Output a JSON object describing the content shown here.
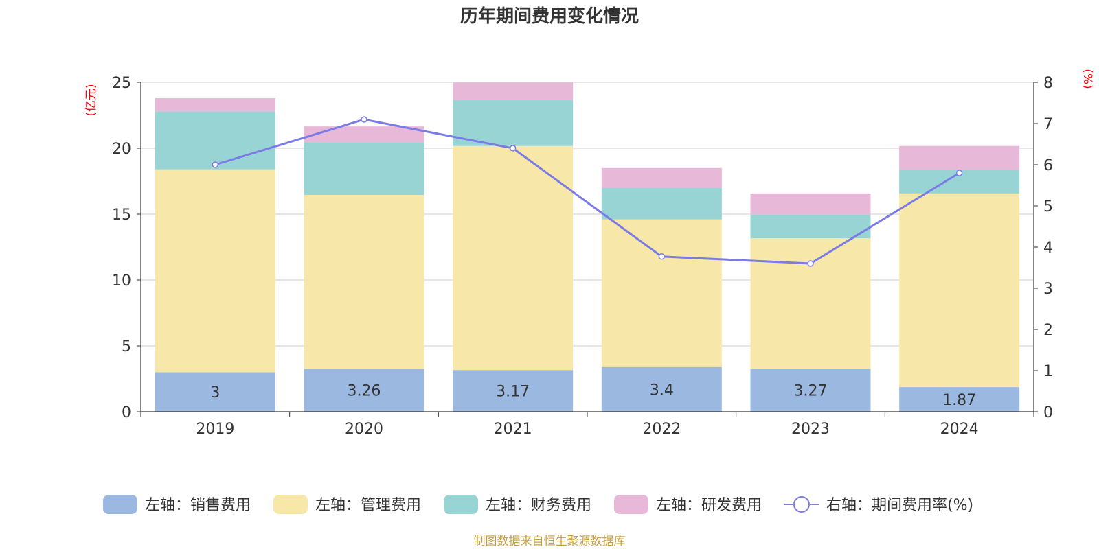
{
  "chart_data": {
    "type": "bar",
    "stacked": true,
    "title": "历年期间费用变化情况",
    "categories": [
      "2019",
      "2020",
      "2021",
      "2022",
      "2023",
      "2024"
    ],
    "left_axis": {
      "unit_label": "(亿元)",
      "ylim": [
        0,
        25
      ],
      "ticks": [
        "0",
        "5",
        "10",
        "15",
        "20",
        "25"
      ]
    },
    "right_axis": {
      "unit_label": "(%)",
      "ylim": [
        0,
        8
      ],
      "ticks": [
        "0",
        "1",
        "2",
        "3",
        "4",
        "5",
        "6",
        "7",
        "8"
      ]
    },
    "series": [
      {
        "name": "左轴：销售费用",
        "axis": "left",
        "type": "bar",
        "color": "#9bb8e0",
        "values": [
          3,
          3.26,
          3.17,
          3.4,
          3.27,
          1.87
        ],
        "labels": [
          "3",
          "3.26",
          "3.17",
          "3.4",
          "3.27",
          "1.87"
        ]
      },
      {
        "name": "左轴：管理费用",
        "axis": "left",
        "type": "bar",
        "color": "#f7e7a8",
        "values": [
          15.4,
          13.2,
          17.0,
          11.2,
          9.9,
          14.7
        ]
      },
      {
        "name": "左轴：财务费用",
        "axis": "left",
        "type": "bar",
        "color": "#98d4d4",
        "values": [
          4.4,
          4.0,
          3.5,
          2.4,
          1.8,
          1.8
        ]
      },
      {
        "name": "左轴：研发费用",
        "axis": "left",
        "type": "bar",
        "color": "#e8b8d8",
        "values": [
          1.0,
          1.2,
          1.3,
          1.5,
          1.6,
          1.8
        ]
      },
      {
        "name": "右轴：期间费用率(%)",
        "axis": "right",
        "type": "line",
        "color": "#7b7be6",
        "values": [
          6.0,
          7.1,
          6.4,
          3.77,
          3.6,
          5.8
        ]
      }
    ],
    "legend_position": "bottom",
    "grid": true
  },
  "footer": {
    "source": "制图数据来自恒生聚源数据库"
  }
}
